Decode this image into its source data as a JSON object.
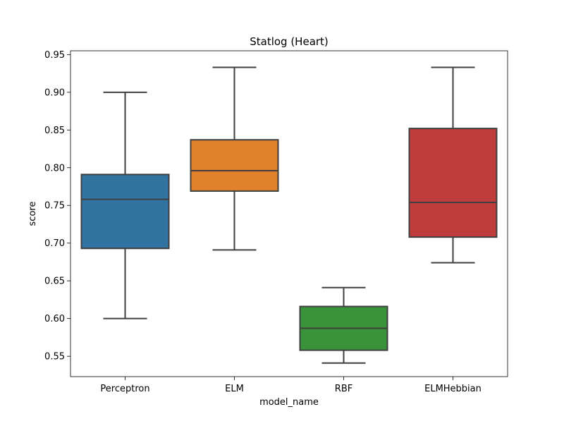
{
  "chart_data": {
    "type": "box",
    "title": "Statlog (Heart)",
    "xlabel": "model_name",
    "ylabel": "score",
    "ylim": [
      0.523,
      0.955
    ],
    "yticks": [
      0.55,
      0.6,
      0.65,
      0.7,
      0.75,
      0.8,
      0.85,
      0.9,
      0.95
    ],
    "ytick_labels": [
      "0.55",
      "0.60",
      "0.65",
      "0.70",
      "0.75",
      "0.80",
      "0.85",
      "0.90",
      "0.95"
    ],
    "grid": false,
    "legend": "none",
    "categories": [
      "Perceptron",
      "ELM",
      "RBF",
      "ELMHebbian"
    ],
    "boxes": [
      {
        "category": "Perceptron",
        "whisker_low": 0.6,
        "q1": 0.693,
        "median": 0.758,
        "q3": 0.791,
        "whisker_high": 0.9,
        "color": "#3274a1"
      },
      {
        "category": "ELM",
        "whisker_low": 0.691,
        "q1": 0.769,
        "median": 0.796,
        "q3": 0.837,
        "whisker_high": 0.933,
        "color": "#e1812c"
      },
      {
        "category": "RBF",
        "whisker_low": 0.541,
        "q1": 0.558,
        "median": 0.587,
        "q3": 0.616,
        "whisker_high": 0.641,
        "color": "#3a923a"
      },
      {
        "category": "ELMHebbian",
        "whisker_low": 0.674,
        "q1": 0.708,
        "median": 0.754,
        "q3": 0.852,
        "whisker_high": 0.933,
        "color": "#c03d3e"
      }
    ],
    "line_color": "#3f3f3f"
  }
}
